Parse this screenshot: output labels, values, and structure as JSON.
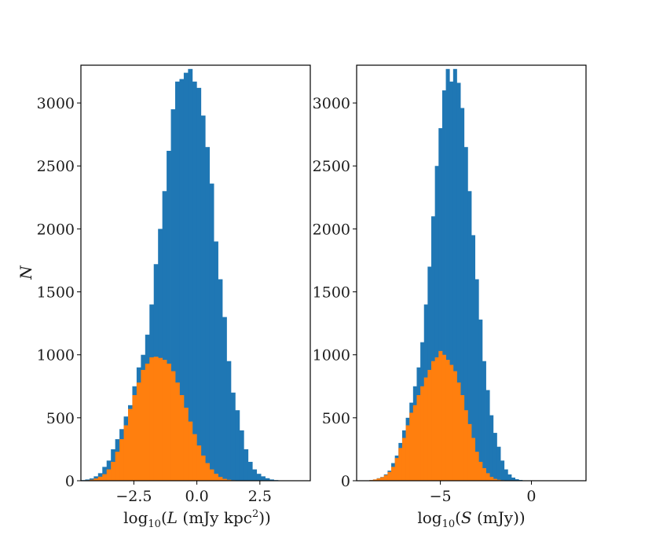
{
  "chart_data": [
    {
      "type": "histogram",
      "xlabel": "log10(L (mJy kpc^2))",
      "ylabel": "N",
      "xlim": [
        -4.6,
        4.5
      ],
      "ylim": [
        0,
        3300
      ],
      "x_ticks": [
        -2.5,
        0.0,
        2.5
      ],
      "x_tick_labels": [
        "−2.5",
        "0.0",
        "2.5"
      ],
      "y_ticks": [
        0,
        500,
        1000,
        1500,
        2000,
        2500,
        3000
      ],
      "y_tick_labels": [
        "0",
        "500",
        "1000",
        "1500",
        "2000",
        "2500",
        "3000"
      ],
      "bins": {
        "start": -4.6,
        "width": 0.17
      },
      "series": [
        {
          "color": "#1f77b4",
          "values": [
            5,
            10,
            18,
            35,
            60,
            110,
            160,
            250,
            330,
            410,
            510,
            600,
            750,
            900,
            1000,
            1160,
            1400,
            1720,
            2000,
            2300,
            2620,
            2950,
            3170,
            3190,
            3240,
            3270,
            3170,
            3120,
            2900,
            2650,
            2360,
            1900,
            1600,
            1300,
            950,
            700,
            560,
            400,
            250,
            150,
            90,
            55,
            35,
            20,
            10,
            5
          ]
        },
        {
          "color": "#ff7f0e",
          "values": [
            2,
            4,
            8,
            18,
            32,
            52,
            90,
            150,
            230,
            330,
            440,
            570,
            680,
            780,
            880,
            930,
            980,
            985,
            975,
            960,
            930,
            870,
            780,
            680,
            580,
            470,
            370,
            280,
            200,
            140,
            90,
            55,
            30,
            15,
            8,
            4
          ]
        }
      ]
    },
    {
      "type": "histogram",
      "xlabel": "log10(S (mJy))",
      "ylabel": "",
      "xlim": [
        -9.6,
        3.0
      ],
      "ylim": [
        0,
        3300
      ],
      "x_ticks": [
        -5,
        0
      ],
      "x_tick_labels": [
        "−5",
        "0"
      ],
      "y_ticks": [
        0,
        500,
        1000,
        1500,
        2000,
        2500,
        3000
      ],
      "y_tick_labels": [
        "0",
        "500",
        "1000",
        "1500",
        "2000",
        "2500",
        "3000"
      ],
      "bins": {
        "start": -8.9,
        "width": 0.2
      },
      "series": [
        {
          "color": "#1f77b4",
          "values": [
            5,
            10,
            20,
            30,
            50,
            80,
            140,
            200,
            300,
            400,
            500,
            620,
            750,
            900,
            1100,
            1400,
            1700,
            2100,
            2500,
            2800,
            3100,
            3270,
            3170,
            3270,
            3160,
            2960,
            2650,
            2300,
            1950,
            1600,
            1280,
            950,
            720,
            520,
            380,
            270,
            160,
            90,
            50,
            25,
            12,
            6
          ]
        },
        {
          "color": "#ff7f0e",
          "values": [
            5,
            10,
            18,
            28,
            45,
            70,
            110,
            180,
            260,
            340,
            440,
            540,
            600,
            680,
            750,
            820,
            880,
            950,
            980,
            1030,
            1000,
            960,
            920,
            870,
            780,
            680,
            560,
            450,
            340,
            230,
            150,
            100,
            60,
            30,
            15,
            8,
            4
          ]
        }
      ]
    }
  ]
}
